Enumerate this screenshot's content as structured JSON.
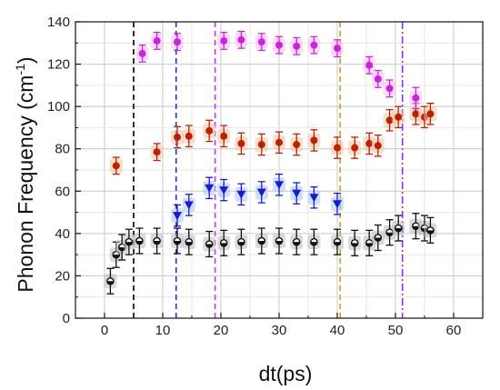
{
  "chart_data": {
    "type": "scatter",
    "xlabel": "dt(ps)",
    "ylabel_main": "Phonon Frequency (cm",
    "ylabel_sup": "-1",
    "ylabel_close": ")",
    "xlim": [
      -5,
      65
    ],
    "ylim": [
      0,
      140
    ],
    "xticks": [
      0,
      10,
      20,
      30,
      40,
      50,
      60
    ],
    "yticks": [
      0,
      20,
      40,
      60,
      80,
      100,
      120,
      140
    ],
    "grid": true,
    "vlines": [
      {
        "x": 5,
        "style": "dashed",
        "color": "#000000"
      },
      {
        "x": 12.3,
        "style": "dashed",
        "color": "#2233dd"
      },
      {
        "x": 19,
        "style": "dashed",
        "color": "#cc33ee"
      },
      {
        "x": 40.5,
        "style": "dashed",
        "color": "#c8a020"
      },
      {
        "x": 51.2,
        "style": "dash-dot",
        "color": "#8833ee"
      }
    ],
    "series": [
      {
        "marker": "half-circle",
        "color": "#111111",
        "highlight": "#bbbbbb",
        "points": [
          {
            "x": 1,
            "y": 17.5,
            "err": 6
          },
          {
            "x": 2,
            "y": 30,
            "err": 6
          },
          {
            "x": 3,
            "y": 33.5,
            "err": 6
          },
          {
            "x": 4.2,
            "y": 36,
            "err": 6
          },
          {
            "x": 6,
            "y": 36.5,
            "err": 6
          },
          {
            "x": 9,
            "y": 36.5,
            "err": 6
          },
          {
            "x": 12.5,
            "y": 36.5,
            "err": 6
          },
          {
            "x": 14.5,
            "y": 36,
            "err": 6
          },
          {
            "x": 18,
            "y": 35,
            "err": 6
          },
          {
            "x": 20.5,
            "y": 35.5,
            "err": 6
          },
          {
            "x": 23.5,
            "y": 36,
            "err": 6
          },
          {
            "x": 27,
            "y": 36.5,
            "err": 6
          },
          {
            "x": 30,
            "y": 36.5,
            "err": 6
          },
          {
            "x": 33,
            "y": 36,
            "err": 6
          },
          {
            "x": 36,
            "y": 36,
            "err": 6
          },
          {
            "x": 40,
            "y": 36,
            "err": 6
          },
          {
            "x": 43,
            "y": 35.5,
            "err": 6
          },
          {
            "x": 45.5,
            "y": 35.5,
            "err": 6
          },
          {
            "x": 47,
            "y": 38,
            "err": 6
          },
          {
            "x": 49,
            "y": 40.5,
            "err": 6
          },
          {
            "x": 50.5,
            "y": 42.5,
            "err": 6
          },
          {
            "x": 53.5,
            "y": 43.5,
            "err": 6
          },
          {
            "x": 55,
            "y": 42.5,
            "err": 6
          },
          {
            "x": 56,
            "y": 41.5,
            "err": 6
          }
        ]
      },
      {
        "marker": "circle",
        "color": "#bb2200",
        "highlight": "#f2c2a8",
        "points": [
          {
            "x": 2,
            "y": 72,
            "err": 4
          },
          {
            "x": 9,
            "y": 78.5,
            "err": 4
          },
          {
            "x": 12.5,
            "y": 85.5,
            "err": 5
          },
          {
            "x": 14.5,
            "y": 86,
            "err": 5
          },
          {
            "x": 18,
            "y": 88.5,
            "err": 5
          },
          {
            "x": 20.5,
            "y": 86,
            "err": 5
          },
          {
            "x": 23.5,
            "y": 82.5,
            "err": 5
          },
          {
            "x": 27,
            "y": 82,
            "err": 5
          },
          {
            "x": 30,
            "y": 83,
            "err": 5
          },
          {
            "x": 33,
            "y": 82,
            "err": 5
          },
          {
            "x": 36,
            "y": 84,
            "err": 5
          },
          {
            "x": 40,
            "y": 80.5,
            "err": 5
          },
          {
            "x": 43,
            "y": 80.5,
            "err": 5
          },
          {
            "x": 45.5,
            "y": 82.5,
            "err": 5
          },
          {
            "x": 47,
            "y": 81.5,
            "err": 5
          },
          {
            "x": 49,
            "y": 93.5,
            "err": 5
          },
          {
            "x": 50.5,
            "y": 95,
            "err": 5
          },
          {
            "x": 53.5,
            "y": 96.5,
            "err": 5
          },
          {
            "x": 55,
            "y": 95,
            "err": 5
          },
          {
            "x": 56,
            "y": 96.5,
            "err": 5
          }
        ]
      },
      {
        "marker": "triangle-down",
        "color": "#1a1acc",
        "highlight": "#a8c8f5",
        "points": [
          {
            "x": 12.5,
            "y": 48.5,
            "err": 5
          },
          {
            "x": 14.5,
            "y": 53.5,
            "err": 5
          },
          {
            "x": 18,
            "y": 61.5,
            "err": 5
          },
          {
            "x": 20.5,
            "y": 60.5,
            "err": 5
          },
          {
            "x": 23.5,
            "y": 58.5,
            "err": 5
          },
          {
            "x": 27,
            "y": 59.5,
            "err": 5
          },
          {
            "x": 30,
            "y": 63,
            "err": 5
          },
          {
            "x": 33,
            "y": 59,
            "err": 5
          },
          {
            "x": 36,
            "y": 57,
            "err": 5
          },
          {
            "x": 40,
            "y": 54,
            "err": 5
          }
        ]
      },
      {
        "marker": "circle",
        "color": "#cc22dd",
        "highlight": "#f5c0f0",
        "points": [
          {
            "x": 6.5,
            "y": 125,
            "err": 4
          },
          {
            "x": 9,
            "y": 131,
            "err": 4
          },
          {
            "x": 12.5,
            "y": 130.5,
            "err": 4
          },
          {
            "x": 20.5,
            "y": 131,
            "err": 4
          },
          {
            "x": 23.5,
            "y": 131.5,
            "err": 4
          },
          {
            "x": 27,
            "y": 130.5,
            "err": 4
          },
          {
            "x": 30,
            "y": 129,
            "err": 4
          },
          {
            "x": 33,
            "y": 128.5,
            "err": 4
          },
          {
            "x": 36,
            "y": 129,
            "err": 4
          },
          {
            "x": 40,
            "y": 127.5,
            "err": 4
          },
          {
            "x": 45.5,
            "y": 119.5,
            "err": 4
          },
          {
            "x": 47,
            "y": 113,
            "err": 4
          },
          {
            "x": 49,
            "y": 108.5,
            "err": 4
          },
          {
            "x": 53.5,
            "y": 104,
            "err": 5
          }
        ]
      }
    ]
  }
}
